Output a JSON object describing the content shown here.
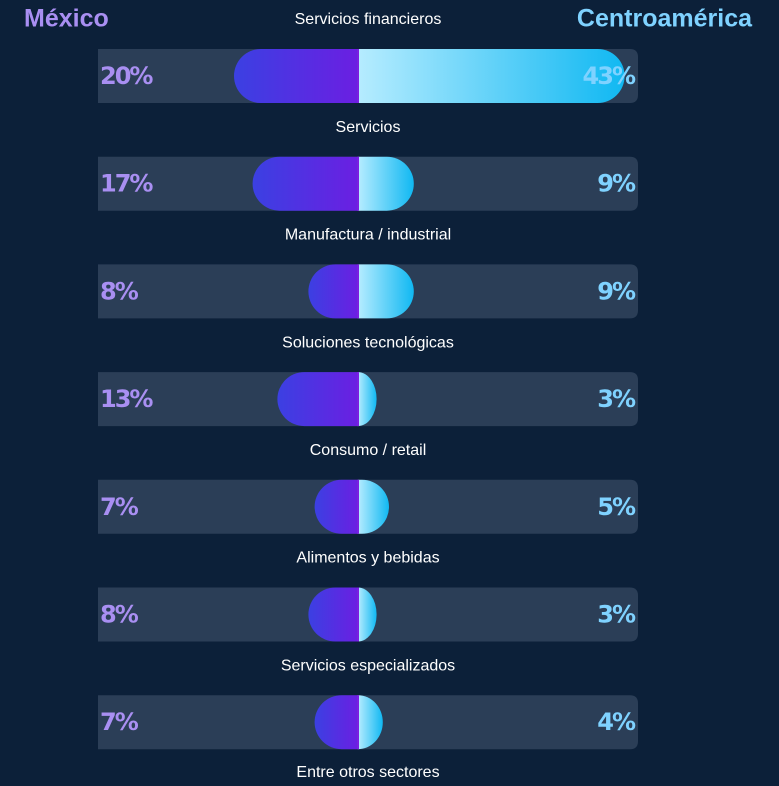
{
  "chart_data": {
    "type": "butterfly",
    "categories": [
      "Servicios financieros",
      "Servicios",
      "Manufactura / industrial",
      "Soluciones tecnológicas",
      "Consumo / retail",
      "Alimentos y bebidas",
      "Servicios especializados"
    ],
    "series": [
      {
        "name": "México",
        "color": "#a98ff2",
        "gradient": [
          "#3b40e2",
          "#6b1fe2"
        ],
        "values": [
          20,
          17,
          8,
          13,
          7,
          8,
          7
        ],
        "value_labels": [
          "20%",
          "17%",
          "8%",
          "13%",
          "7%",
          "8%",
          "7%"
        ]
      },
      {
        "name": "Centroamérica",
        "color": "#7fd2ff",
        "gradient": [
          "#b6ecff",
          "#10b8f2"
        ],
        "values": [
          43,
          9,
          9,
          3,
          5,
          3,
          4
        ],
        "value_labels": [
          "43%",
          "9%",
          "9%",
          "3%",
          "5%",
          "3%",
          "4%"
        ]
      }
    ],
    "footer": "Entre otros sectores"
  }
}
